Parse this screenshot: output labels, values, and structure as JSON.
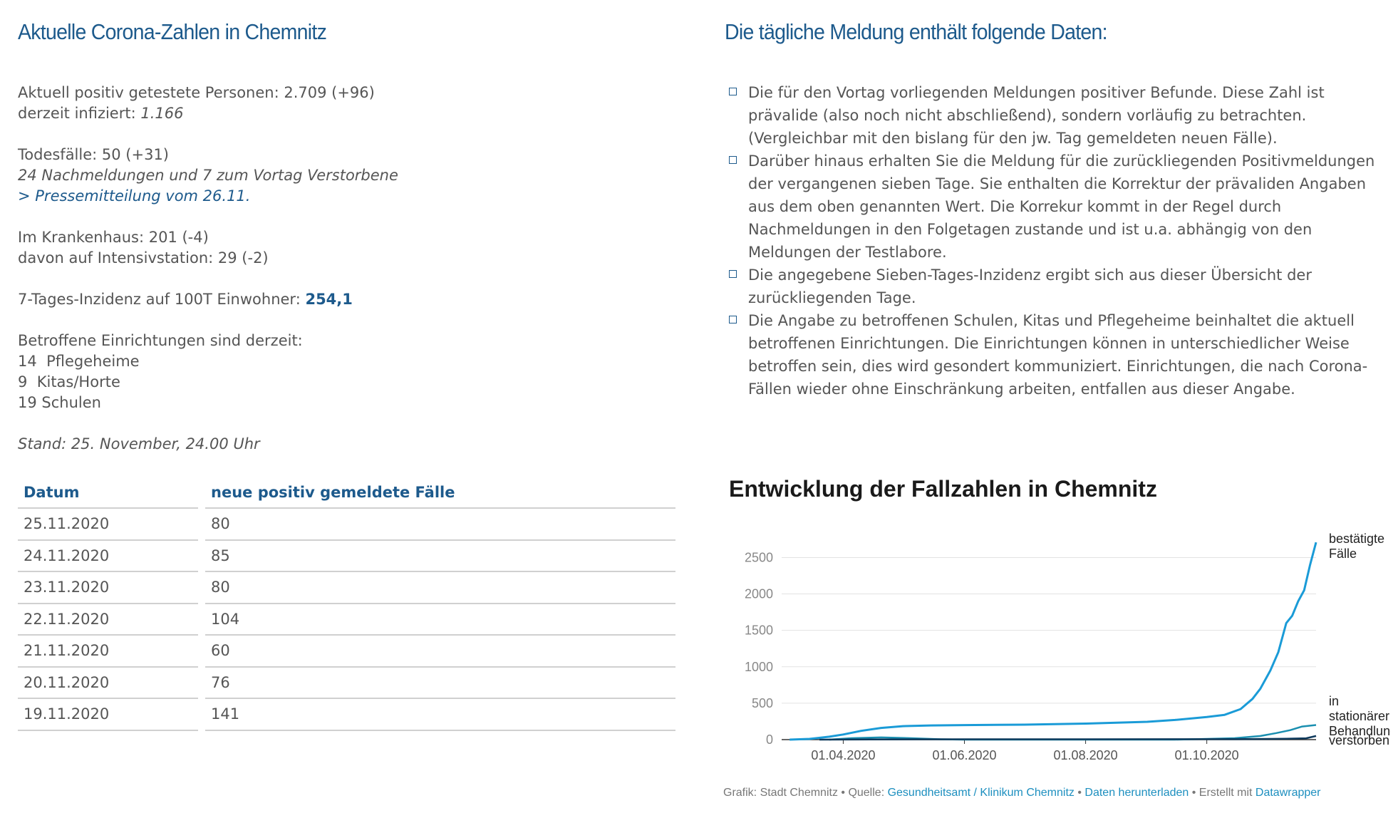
{
  "left": {
    "title": "Aktuelle Corona-Zahlen in Chemnitz",
    "positive_line": "Aktuell positiv getestete Personen: 2.709 (+96)",
    "infected_label": "derzeit infiziert: ",
    "infected_value": "1.166",
    "deaths_line": "Todesfälle: 50 (+31)",
    "deaths_note": "24 Nachmeldungen und 7 zum Vortag Verstorbene",
    "press_link": "> Pressemitteilung vom 26.11.",
    "hospital_line": "Im Krankenhaus: 201 (-4)",
    "icu_line": "davon auf Intensivstation: 29 (-2)",
    "incidence_label": "7-Tages-Inzidenz auf 100T Einwohner: ",
    "incidence_value": "254,1",
    "facilities_heading": "Betroffene Einrichtungen sind derzeit:",
    "facilities": [
      "14  Pflegeheime",
      "9  Kitas/Horte",
      "19 Schulen"
    ],
    "stand": "Stand: 25. November, 24.00 Uhr"
  },
  "right": {
    "title": "Die tägliche Meldung enthält folgende Daten:",
    "bullets": [
      "Die für den Vortag vorliegenden Meldungen positiver Befunde. Diese Zahl ist prävalide (also noch nicht abschließend), sondern vorläufig zu betrachten. (Vergleichbar mit den bislang für den jw. Tag gemeldeten neuen Fälle).",
      "Darüber hinaus erhalten Sie die Meldung für die zurückliegenden Positivmeldungen der vergangenen sieben Tage. Sie enthalten die Korrektur der prävaliden Angaben aus dem oben genannten Wert. Die Korrekur kommt in der Regel durch Nachmeldungen in den Folgetagen zustande und ist u.a. abhängig von den Meldungen der Testlabore.",
      "Die angegebene Sieben-Tages-Inzidenz ergibt sich aus dieser Übersicht der zurückliegenden Tage.",
      "Die Angabe zu betroffenen Schulen, Kitas und Pflegeheime beinhaltet die aktuell betroffenen Einrichtungen. Die Einrichtungen können in unterschiedlicher Weise betroffen sein, dies wird gesondert kommuniziert. Einrichtungen, die nach Corona-Fällen wieder ohne Einschränkung arbeiten, entfallen aus dieser Angabe."
    ]
  },
  "table": {
    "headers": [
      "Datum",
      "neue positiv gemeldete Fälle"
    ],
    "rows": [
      [
        "25.11.2020",
        "80"
      ],
      [
        "24.11.2020",
        "85"
      ],
      [
        "23.11.2020",
        "80"
      ],
      [
        "22.11.2020",
        "104"
      ],
      [
        "21.11.2020",
        "60"
      ],
      [
        "20.11.2020",
        "76"
      ],
      [
        "19.11.2020",
        "141"
      ]
    ]
  },
  "chart_data": {
    "type": "line",
    "title": "Entwicklung der Fallzahlen in Chemnitz",
    "ylim": [
      0,
      2700
    ],
    "yticks": [
      0,
      500,
      1000,
      1500,
      2000,
      2500
    ],
    "xlim": [
      "2020-03-01",
      "2020-11-25"
    ],
    "xticks": [
      {
        "date": "2020-04-01",
        "label": "01.04.2020"
      },
      {
        "date": "2020-06-01",
        "label": "01.06.2020"
      },
      {
        "date": "2020-08-01",
        "label": "01.08.2020"
      },
      {
        "date": "2020-10-01",
        "label": "01.10.2020"
      }
    ],
    "series": [
      {
        "name": "bestätigte Fälle",
        "label_lines": [
          "bestätigte",
          "Fälle"
        ],
        "color": "#1a9bd7",
        "points": [
          [
            "2020-03-05",
            0
          ],
          [
            "2020-03-15",
            10
          ],
          [
            "2020-03-25",
            40
          ],
          [
            "2020-04-01",
            70
          ],
          [
            "2020-04-10",
            120
          ],
          [
            "2020-04-20",
            160
          ],
          [
            "2020-05-01",
            185
          ],
          [
            "2020-05-15",
            195
          ],
          [
            "2020-06-01",
            200
          ],
          [
            "2020-07-01",
            205
          ],
          [
            "2020-08-01",
            220
          ],
          [
            "2020-09-01",
            245
          ],
          [
            "2020-09-15",
            270
          ],
          [
            "2020-10-01",
            310
          ],
          [
            "2020-10-10",
            340
          ],
          [
            "2020-10-18",
            420
          ],
          [
            "2020-10-24",
            560
          ],
          [
            "2020-10-28",
            700
          ],
          [
            "2020-11-02",
            950
          ],
          [
            "2020-11-06",
            1200
          ],
          [
            "2020-11-10",
            1600
          ],
          [
            "2020-11-13",
            1700
          ],
          [
            "2020-11-16",
            1900
          ],
          [
            "2020-11-19",
            2050
          ],
          [
            "2020-11-22",
            2400
          ],
          [
            "2020-11-25",
            2709
          ]
        ]
      },
      {
        "name": "in stationärer Behandlung",
        "label_lines": [
          "in",
          "stationärer",
          "Behandlung"
        ],
        "color": "#1a8fb0",
        "points": [
          [
            "2020-03-25",
            0
          ],
          [
            "2020-04-05",
            20
          ],
          [
            "2020-04-20",
            30
          ],
          [
            "2020-05-05",
            20
          ],
          [
            "2020-05-20",
            5
          ],
          [
            "2020-06-01",
            0
          ],
          [
            "2020-09-15",
            0
          ],
          [
            "2020-10-01",
            10
          ],
          [
            "2020-10-15",
            20
          ],
          [
            "2020-10-28",
            50
          ],
          [
            "2020-11-05",
            90
          ],
          [
            "2020-11-12",
            130
          ],
          [
            "2020-11-18",
            180
          ],
          [
            "2020-11-25",
            201
          ]
        ]
      },
      {
        "name": "verstorben",
        "label_lines": [
          "verstorben"
        ],
        "color": "#0e3a5c",
        "points": [
          [
            "2020-03-20",
            0
          ],
          [
            "2020-04-15",
            3
          ],
          [
            "2020-06-01",
            5
          ],
          [
            "2020-10-15",
            6
          ],
          [
            "2020-11-10",
            12
          ],
          [
            "2020-11-20",
            19
          ],
          [
            "2020-11-25",
            50
          ]
        ]
      }
    ],
    "footer": {
      "prefix": "Grafik: Stadt Chemnitz • Quelle: ",
      "source_link": "Gesundheitsamt / Klinikum Chemnitz",
      "sep": " • ",
      "download_link": "Daten herunterladen",
      "made_with": " • Erstellt mit ",
      "tool_link": "Datawrapper"
    }
  }
}
